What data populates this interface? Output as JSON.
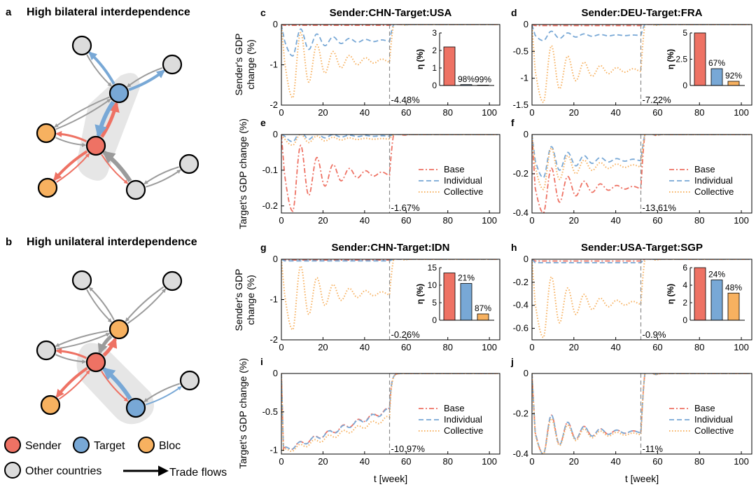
{
  "colors": {
    "sender": "#ee7264",
    "target": "#78a8d6",
    "bloc": "#f7b160",
    "other": "#dcdcdc",
    "gray_flow": "#9b9b9b",
    "dash": "#8c8c8c",
    "axis": "#000000"
  },
  "network": {
    "panel_a": {
      "letter": "a",
      "title": "High bilateral interdependence"
    },
    "panel_b": {
      "letter": "b",
      "title": "High unilateral interdependence"
    },
    "legend": {
      "sender": "Sender",
      "target": "Target",
      "bloc": "Bloc",
      "other": "Other countries",
      "flows": "Trade flows"
    }
  },
  "common": {
    "xlabel": "t [week]",
    "sender_ylabel": [
      "Sender's GDP",
      "change (%)"
    ],
    "target_ylabel": "Target's GDP change (%)",
    "inset_ylabel": "η (%)",
    "legend": [
      "Base",
      "Individual",
      "Collective"
    ]
  },
  "chart_data": [
    {
      "letter": "c",
      "type": "line",
      "title": "Sender:CHN-Target:USA",
      "xlim": [
        0,
        105
      ],
      "ylim": [
        -2,
        0
      ],
      "xticks": [
        0,
        20,
        40,
        60,
        80,
        100
      ],
      "yticks": [
        0,
        -1,
        -2
      ],
      "ytick_labels": [
        "0",
        "-1",
        "-2"
      ],
      "cutoff": 52,
      "cutoff_label": "-4.48%",
      "series": [
        {
          "key": "base",
          "level": -0.02
        },
        {
          "key": "individual",
          "level": -0.4,
          "dip": -0.78
        },
        {
          "key": "collective",
          "level": -0.9,
          "dip": -1.82
        }
      ],
      "inset": {
        "ylim": [
          0,
          3
        ],
        "yticks": [
          0,
          1,
          2,
          3
        ],
        "values": [
          2.2,
          0.05,
          0.02
        ],
        "labels": [
          "",
          "98%",
          "99%"
        ]
      }
    },
    {
      "letter": "d",
      "type": "line",
      "title": "Sender:DEU-Target:FRA",
      "xlim": [
        0,
        105
      ],
      "ylim": [
        -1.5,
        0
      ],
      "xticks": [
        0,
        20,
        40,
        60,
        80,
        100
      ],
      "yticks": [
        0,
        -0.5,
        -1,
        -1.5
      ],
      "ytick_labels": [
        "0",
        "-0.5",
        "-1",
        "-1.5"
      ],
      "cutoff": 52,
      "cutoff_label": "-7.22%",
      "series": [
        {
          "key": "base",
          "level": -0.02
        },
        {
          "key": "individual",
          "level": -0.2,
          "dip": -0.3
        },
        {
          "key": "collective",
          "level": -0.85,
          "dip": -1.45
        }
      ],
      "inset": {
        "ylim": [
          0,
          5
        ],
        "yticks": [
          0,
          2.5,
          5
        ],
        "values": [
          5.0,
          1.6,
          0.4
        ],
        "labels": [
          "",
          "67%",
          "92%"
        ]
      }
    },
    {
      "letter": "e",
      "type": "line",
      "title": "",
      "xlim": [
        0,
        105
      ],
      "ylim": [
        -0.22,
        0
      ],
      "xticks": [
        0,
        20,
        40,
        60,
        80,
        100
      ],
      "yticks": [
        0,
        -0.1,
        -0.2
      ],
      "ytick_labels": [
        "0",
        "-0.1",
        "-0.2"
      ],
      "cutoff": 52,
      "cutoff_label": "-1.67%",
      "series": [
        {
          "key": "base",
          "level": -0.11,
          "dip": -0.215
        },
        {
          "key": "individual",
          "level": -0.004,
          "dip": -0.02
        },
        {
          "key": "collective",
          "level": -0.012,
          "dip": -0.03
        }
      ]
    },
    {
      "letter": "f",
      "type": "line",
      "title": "",
      "xlim": [
        0,
        105
      ],
      "ylim": [
        -0.4,
        0
      ],
      "xticks": [
        0,
        20,
        40,
        60,
        80,
        100
      ],
      "yticks": [
        0,
        -0.2,
        -0.4
      ],
      "ytick_labels": [
        "0",
        "-0.2",
        "-0.4"
      ],
      "cutoff": 52,
      "cutoff_label": "-13.61%",
      "series": [
        {
          "key": "base",
          "level": -0.27,
          "dip": -0.4
        },
        {
          "key": "individual",
          "level": -0.13,
          "dip": -0.22
        },
        {
          "key": "collective",
          "level": -0.16,
          "dip": -0.28
        }
      ]
    },
    {
      "letter": "g",
      "type": "line",
      "title": "Sender:CHN-Target:IDN",
      "xlim": [
        0,
        105
      ],
      "ylim": [
        -2,
        0
      ],
      "xticks": [
        0,
        20,
        40,
        60,
        80,
        100
      ],
      "yticks": [
        0,
        -1,
        -2
      ],
      "ytick_labels": [
        "0",
        "-1",
        "-2"
      ],
      "cutoff": 52,
      "cutoff_label": "-0.26%",
      "series": [
        {
          "key": "base",
          "level": -0.02
        },
        {
          "key": "individual",
          "level": -0.04
        },
        {
          "key": "collective",
          "level": -0.85,
          "dip": -1.75
        }
      ],
      "inset": {
        "ylim": [
          0,
          15
        ],
        "yticks": [
          0,
          5,
          10,
          15
        ],
        "values": [
          13.5,
          10.5,
          1.8
        ],
        "labels": [
          "",
          "21%",
          "87%"
        ]
      }
    },
    {
      "letter": "h",
      "type": "line",
      "title": "Sender:USA-Target:SGP",
      "xlim": [
        0,
        105
      ],
      "ylim": [
        -0.7,
        0
      ],
      "xticks": [
        0,
        20,
        40,
        60,
        80,
        100
      ],
      "yticks": [
        0,
        -0.2,
        -0.4,
        -0.6
      ],
      "ytick_labels": [
        "0",
        "-0.2",
        "-0.4",
        "-0.6"
      ],
      "cutoff": 52,
      "cutoff_label": "-0.9%",
      "series": [
        {
          "key": "base",
          "level": -0.015
        },
        {
          "key": "individual",
          "level": -0.03
        },
        {
          "key": "collective",
          "level": -0.38,
          "dip": -0.68
        }
      ],
      "inset": {
        "ylim": [
          0,
          6
        ],
        "yticks": [
          0,
          2,
          4,
          6
        ],
        "values": [
          6.0,
          4.6,
          3.1
        ],
        "labels": [
          "",
          "24%",
          "48%"
        ]
      }
    },
    {
      "letter": "i",
      "type": "line",
      "title": "",
      "xlim": [
        0,
        105
      ],
      "ylim": [
        -1.05,
        0
      ],
      "xticks": [
        0,
        20,
        40,
        60,
        80,
        100
      ],
      "yticks": [
        0,
        -0.5,
        -1
      ],
      "ytick_labels": [
        "0",
        "-0.5",
        "-1"
      ],
      "cutoff": 52,
      "cutoff_label": "-10.97%",
      "series": [
        {
          "key": "base",
          "trend": [
            -1.0,
            -0.47
          ]
        },
        {
          "key": "individual",
          "trend": [
            -1.0,
            -0.48
          ]
        },
        {
          "key": "collective",
          "trend": [
            -1.02,
            -0.58
          ]
        }
      ]
    },
    {
      "letter": "j",
      "type": "line",
      "title": "",
      "xlim": [
        0,
        105
      ],
      "ylim": [
        -0.4,
        0
      ],
      "xticks": [
        0,
        20,
        40,
        60,
        80,
        100
      ],
      "yticks": [
        0,
        -0.2,
        -0.4
      ],
      "ytick_labels": [
        "0",
        "-0.2",
        "-0.4"
      ],
      "cutoff": 52,
      "cutoff_label": "-11%",
      "series": [
        {
          "key": "base",
          "level": -0.29,
          "dip": -0.4
        },
        {
          "key": "individual",
          "level": -0.29,
          "dip": -0.4
        },
        {
          "key": "collective",
          "level": -0.3,
          "dip": -0.4
        }
      ]
    }
  ]
}
